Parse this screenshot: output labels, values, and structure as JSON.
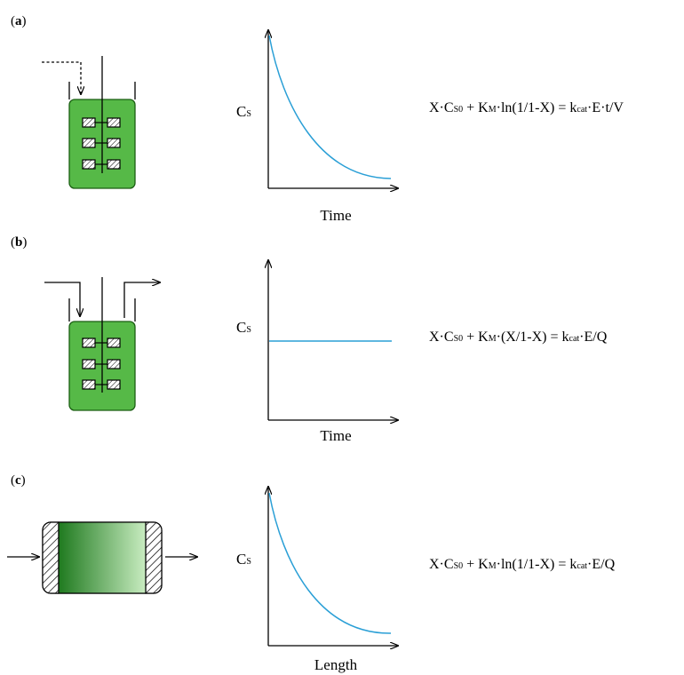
{
  "panels": [
    {
      "label_open": "(",
      "label_letter": "a",
      "label_close": ")",
      "reactor": "batch",
      "y_label": "C",
      "y_label_sub": "S",
      "x_label": "Time",
      "equation": {
        "p1": "X·C",
        "s1": "S0",
        "p2": " + K",
        "s2": "M",
        "p3": "·ln(1/1-X) = k",
        "s3": "cat",
        "p4": "·E·t/V"
      }
    },
    {
      "label_open": "(",
      "label_letter": "b",
      "label_close": ")",
      "reactor": "continuous-stirred-tank",
      "y_label": "C",
      "y_label_sub": "S",
      "x_label": "Time",
      "equation": {
        "p1": "X·C",
        "s1": "S0",
        "p2": " + K",
        "s2": "M",
        "p3": "·(X/1-X) = k",
        "s3": "cat",
        "p4": "·E/Q"
      }
    },
    {
      "label_open": "(",
      "label_letter": "c",
      "label_close": ")",
      "reactor": "packed-bed",
      "y_label": "C",
      "y_label_sub": "S",
      "x_label": "Length",
      "equation": {
        "p1": "X·C",
        "s1": "S0",
        "p2": " + K",
        "s2": "M",
        "p3": "·ln(1/1-X) = k",
        "s3": "cat",
        "p4": "·E/Q"
      }
    }
  ],
  "colors": {
    "reactor_fill": "#56b947",
    "reactor_stroke": "#1a5e12",
    "curve": "#2a9fd6",
    "gradient_dark": "#1f7a1f",
    "gradient_light": "#c8ecc0"
  },
  "icons": [
    "feed-arrow-icon",
    "outlet-arrow-icon",
    "stirrer-icon",
    "enzyme-bead-icon",
    "hatched-end-cap-icon"
  ]
}
